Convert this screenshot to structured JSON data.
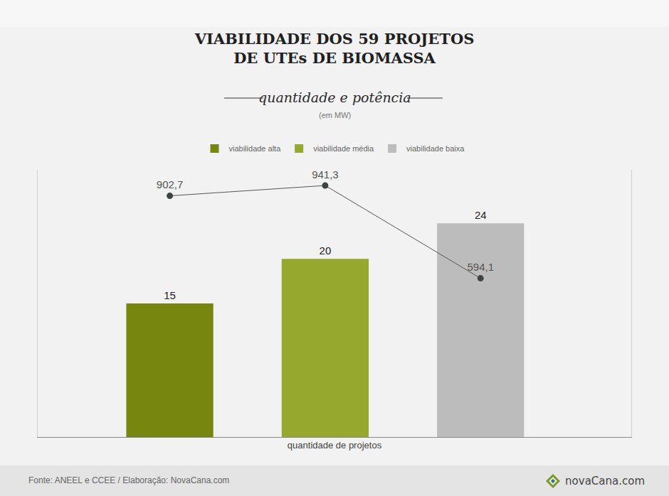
{
  "chart_data": {
    "type": "bar",
    "title": "VIABILIDADE DOS 59 PROJETOS DE UTEs DE BIOMASSA",
    "subtitle": "quantidade e potência",
    "annotations": [
      "(em MW)"
    ],
    "xlabel": "quantidade de projetos",
    "source": "Fonte: ANEEL e CCEE / Elaboração: NovaCana.com",
    "logo": "novaCana.com",
    "categories": [
      null,
      null,
      null
    ],
    "series": [
      {
        "name": "viabilidade alta",
        "color": "#76860f",
        "values": [
          15,
          null,
          null
        ]
      },
      {
        "name": "viabilidade média",
        "color": "#97a82e",
        "values": [
          null,
          20,
          null
        ]
      },
      {
        "name": "viabilidade baixa",
        "color": "#bdbcbc",
        "values": [
          null,
          null,
          24
        ]
      },
      {
        "type": "line",
        "color": "#3d4242",
        "marker": "circle",
        "axis": "y2",
        "values": [
          902.7,
          941.3,
          594.1
        ],
        "value_labels": [
          "902,7",
          "941,3",
          "594,1"
        ]
      }
    ],
    "ylim": [
      0,
      30
    ],
    "y2lim": [
      0,
      1000
    ],
    "grid": false,
    "legend": "top",
    "data_labels": true,
    "tick_labels": false
  }
}
